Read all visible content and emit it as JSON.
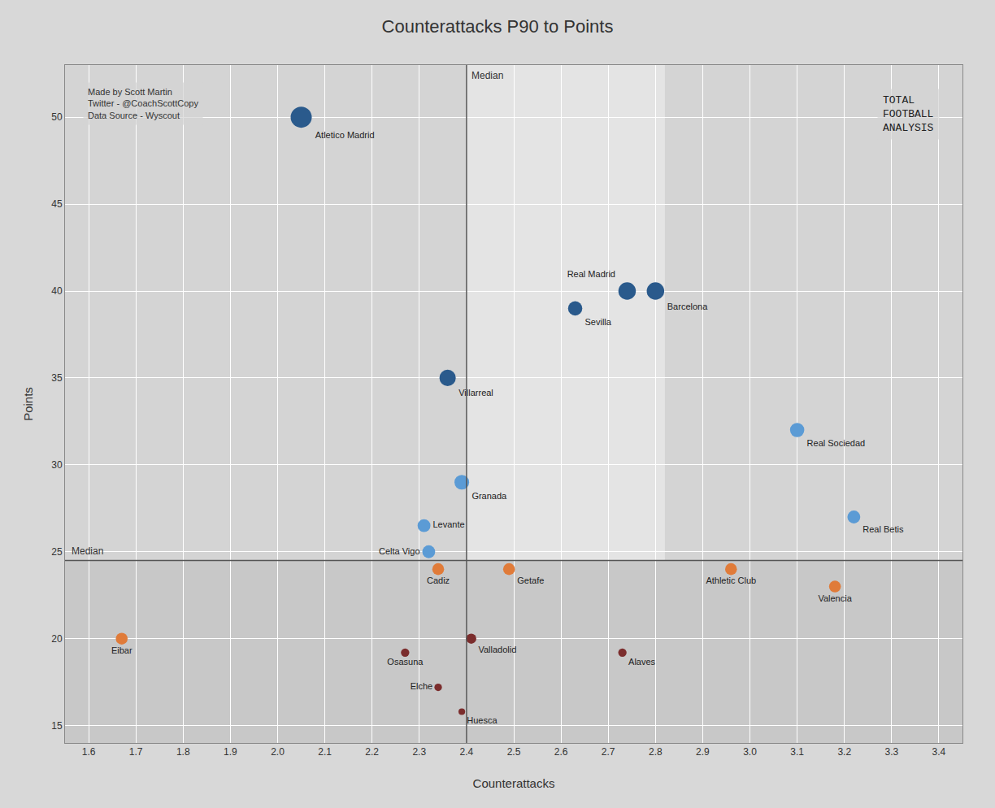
{
  "chart_data": {
    "type": "scatter",
    "title": "Counterattacks P90 to Points",
    "xlabel": "Counterattacks",
    "ylabel": "Points",
    "xlim": [
      1.55,
      3.45
    ],
    "ylim": [
      14,
      53
    ],
    "xticks": [
      1.6,
      1.7,
      1.8,
      1.9,
      {
        "value": 2,
        "label": "2.0"
      },
      2.1,
      2.2,
      2.3,
      2.4,
      2.5,
      2.6,
      2.7,
      2.8,
      2.9,
      {
        "value": 3,
        "label": "3.0"
      },
      3.1,
      3.2,
      3.3,
      3.4
    ],
    "yticks": [
      15,
      20,
      25,
      30,
      35,
      40,
      45,
      50
    ],
    "grid": true,
    "labels": [
      "Atletico Madrid",
      "Real Madrid",
      "Barcelona",
      "Sevilla",
      "Villarreal",
      "Real Sociedad",
      "Granada",
      "Levante",
      "Celta Vigo",
      "Real Betis",
      "Cadiz",
      "Getafe",
      "Athletic Club",
      "Valencia",
      "Eibar",
      "Valladolid",
      "Osasuna",
      "Alaves",
      "Elche",
      "Huesca"
    ],
    "x": [
      2.05,
      2.74,
      2.8,
      2.63,
      2.36,
      3.1,
      2.39,
      2.31,
      2.32,
      3.22,
      2.34,
      2.49,
      2.96,
      3.18,
      1.67,
      2.41,
      2.27,
      2.73,
      2.34,
      2.39
    ],
    "values": [
      50,
      40,
      40,
      39,
      35,
      32,
      29,
      26.5,
      25.0,
      27,
      24.0,
      24.0,
      24.0,
      23.0,
      20.0,
      20.0,
      19.2,
      19.2,
      17.2,
      15.8
    ],
    "colors": [
      "#2a5a8c",
      "#2a5a8c",
      "#2a5a8c",
      "#2a5a8c",
      "#2a5a8c",
      "#5b9bd5",
      "#5b9bd5",
      "#5b9bd5",
      "#5b9bd5",
      "#5b9bd5",
      "#e07b39",
      "#e07b39",
      "#e07b39",
      "#e07b39",
      "#e07b39",
      "#7b2d2d",
      "#7b2d2d",
      "#7b2d2d",
      "#7b2d2d",
      "#7b2d2d"
    ],
    "sizes": [
      350,
      240,
      240,
      160,
      210,
      160,
      170,
      130,
      130,
      130,
      110,
      110,
      110,
      110,
      110,
      80,
      55,
      55,
      45,
      35
    ],
    "reference_lines": [
      {
        "axis": "x",
        "value": 2.4,
        "label": "Median",
        "color": "#555555"
      },
      {
        "axis": "y",
        "value": 24.5,
        "label": "Median",
        "color": "#555555"
      }
    ],
    "regions": [
      {
        "x": [
          2.4,
          2.82
        ],
        "y": [
          24.5,
          53
        ],
        "color": "#e4e4e4"
      },
      {
        "x": [
          1.55,
          3.45
        ],
        "y": [
          14,
          24.5
        ],
        "color": "#c8c8c8"
      }
    ],
    "annotations": [
      {
        "lines": [
          "Made by Scott Martin",
          "Twitter - @CoachScottCopy",
          "Data Source - Wyscout"
        ]
      },
      {
        "lines": [
          "TOTAL",
          "FOOTBALL",
          "ANALYSIS"
        ]
      }
    ]
  }
}
